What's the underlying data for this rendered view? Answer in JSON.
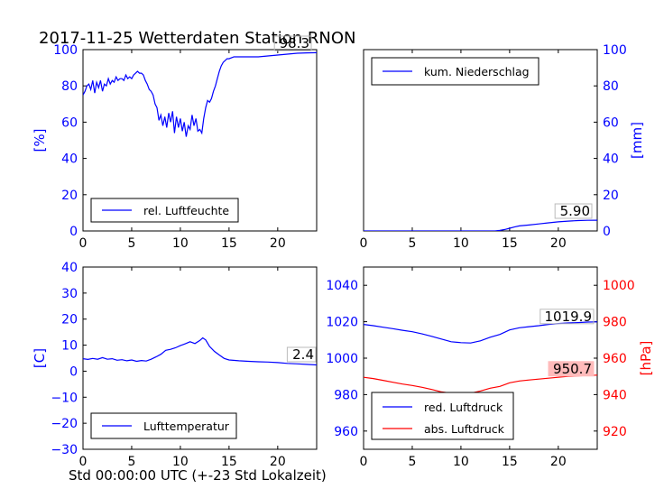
{
  "figure": {
    "title": "2017-11-25 Wetterdaten Station RNON",
    "xlabel": "Std 00:00:00 UTC (+-23 Std Lokalzeit)"
  },
  "chart_data": [
    {
      "id": "humidity",
      "type": "line",
      "ylabel": "[%]",
      "xlim": [
        0,
        24
      ],
      "ylim": [
        0,
        100
      ],
      "xticks": [
        0,
        5,
        10,
        15,
        20
      ],
      "yticks": [
        0,
        20,
        40,
        60,
        80,
        100
      ],
      "legend": "bottom-left",
      "series": [
        {
          "name": "rel. Luftfeuchte",
          "color": "#0000ff",
          "last_value_label": "98.3",
          "x": [
            0,
            0.2,
            0.4,
            0.6,
            0.8,
            1.0,
            1.2,
            1.4,
            1.6,
            1.8,
            2.0,
            2.2,
            2.4,
            2.6,
            2.8,
            3.0,
            3.2,
            3.4,
            3.6,
            3.8,
            4.0,
            4.2,
            4.4,
            4.6,
            4.8,
            5.0,
            5.2,
            5.4,
            5.6,
            5.8,
            6.0,
            6.2,
            6.4,
            6.6,
            6.8,
            7.0,
            7.2,
            7.4,
            7.6,
            7.8,
            8.0,
            8.2,
            8.4,
            8.6,
            8.8,
            9.0,
            9.2,
            9.4,
            9.6,
            9.8,
            10.0,
            10.2,
            10.4,
            10.6,
            10.8,
            11.0,
            11.2,
            11.4,
            11.6,
            11.8,
            12.0,
            12.2,
            12.4,
            12.6,
            12.8,
            13.0,
            13.2,
            13.4,
            13.6,
            13.8,
            14.0,
            14.2,
            14.4,
            14.6,
            14.8,
            15.0,
            15.5,
            16.0,
            17.0,
            18.0,
            19.0,
            20.0,
            21.0,
            22.0,
            23.0,
            24.0
          ],
          "y": [
            75,
            77,
            80,
            81,
            78,
            83,
            76,
            82,
            79,
            83,
            77,
            81,
            80,
            84,
            81,
            83,
            82,
            85,
            83,
            84,
            84,
            83,
            86,
            84,
            85,
            84,
            86,
            87,
            88,
            87,
            87,
            86,
            83,
            81,
            78,
            77,
            75,
            70,
            68,
            61,
            64,
            58,
            63,
            57,
            65,
            60,
            66,
            54,
            63,
            57,
            62,
            55,
            60,
            52,
            58,
            56,
            64,
            58,
            62,
            55,
            56,
            54,
            62,
            68,
            72,
            71,
            73,
            77,
            80,
            84,
            88,
            91,
            93,
            94,
            95,
            95,
            96,
            96,
            96,
            96,
            96.5,
            97,
            97.5,
            98,
            98.2,
            98.3
          ]
        }
      ]
    },
    {
      "id": "precipitation",
      "type": "line",
      "ylabel": "[mm]",
      "xlim": [
        0,
        24
      ],
      "ylim": [
        0,
        100
      ],
      "xticks": [
        0,
        5,
        10,
        15,
        20
      ],
      "yticks": [
        0,
        20,
        40,
        60,
        80,
        100
      ],
      "legend": "top-left",
      "series": [
        {
          "name": "kum. Niederschlag",
          "color": "#0000ff",
          "last_value_label": "5.90",
          "x": [
            0,
            13.5,
            14.0,
            14.5,
            15.0,
            15.5,
            16.0,
            17.0,
            18.0,
            19.0,
            20.0,
            21.0,
            22.0,
            23.0,
            24.0
          ],
          "y": [
            0,
            0,
            0.3,
            0.8,
            1.5,
            2.2,
            2.8,
            3.3,
            3.9,
            4.5,
            5.0,
            5.4,
            5.7,
            5.85,
            5.9
          ]
        }
      ]
    },
    {
      "id": "temperature",
      "type": "line",
      "ylabel": "[C]",
      "xlim": [
        0,
        24
      ],
      "ylim": [
        -30,
        40
      ],
      "xticks": [
        0,
        5,
        10,
        15,
        20
      ],
      "yticks": [
        -30,
        -20,
        -10,
        0,
        10,
        20,
        30,
        40
      ],
      "legend": "bottom-left",
      "series": [
        {
          "name": "Lufttemperatur",
          "color": "#0000ff",
          "last_value_label": "2.4",
          "x": [
            0,
            0.5,
            1.0,
            1.5,
            2.0,
            2.5,
            3.0,
            3.5,
            4.0,
            4.5,
            5.0,
            5.5,
            6.0,
            6.5,
            7.0,
            7.5,
            8.0,
            8.5,
            9.0,
            9.5,
            10.0,
            10.5,
            11.0,
            11.5,
            12.0,
            12.3,
            12.6,
            13.0,
            13.5,
            14.0,
            14.5,
            15.0,
            16.0,
            17.0,
            18.0,
            19.0,
            20.0,
            21.0,
            22.0,
            23.0,
            24.0
          ],
          "y": [
            4.8,
            4.5,
            4.9,
            4.6,
            5.2,
            4.6,
            4.8,
            4.2,
            4.4,
            4.0,
            4.3,
            3.8,
            4.1,
            3.9,
            4.6,
            5.5,
            6.5,
            8.0,
            8.4,
            9.0,
            9.8,
            10.5,
            11.3,
            10.6,
            11.8,
            12.8,
            12.0,
            9.5,
            7.6,
            6.2,
            4.9,
            4.3,
            4.0,
            3.8,
            3.6,
            3.5,
            3.3,
            3.0,
            2.8,
            2.6,
            2.4
          ]
        }
      ]
    },
    {
      "id": "pressure",
      "type": "line",
      "ylabel": "[hPa]",
      "xlim": [
        0,
        24
      ],
      "ylim_left": [
        950,
        1050
      ],
      "ylim_right": [
        910,
        1010
      ],
      "xticks": [
        0,
        5,
        10,
        15,
        20
      ],
      "yticks_left": [
        960,
        980,
        1000,
        1020,
        1040
      ],
      "yticks_right": [
        920,
        940,
        960,
        980,
        1000
      ],
      "legend": "bottom-left",
      "series": [
        {
          "name": "red. Luftdruck",
          "color": "#0000ff",
          "axis": "left",
          "last_value_label": "1019.9",
          "x": [
            0,
            1,
            2,
            3,
            4,
            5,
            6,
            7,
            8,
            9,
            10,
            11,
            12,
            13,
            14,
            15,
            16,
            17,
            18,
            19,
            20,
            21,
            22,
            23,
            24
          ],
          "y": [
            1018.5,
            1017.8,
            1017.0,
            1016.2,
            1015.3,
            1014.5,
            1013.3,
            1012.0,
            1010.5,
            1009.0,
            1008.5,
            1008.3,
            1009.5,
            1011.5,
            1013.0,
            1015.5,
            1016.7,
            1017.3,
            1017.8,
            1018.5,
            1019.0,
            1019.3,
            1019.5,
            1019.8,
            1019.9
          ]
        },
        {
          "name": "abs. Luftdruck",
          "color": "#ff0000",
          "axis": "right",
          "last_value_label": "950.7",
          "x": [
            0,
            1,
            2,
            3,
            4,
            5,
            6,
            7,
            8,
            9,
            10,
            11,
            12,
            13,
            14,
            15,
            16,
            17,
            18,
            19,
            20,
            21,
            22,
            23,
            24
          ],
          "y": [
            949.5,
            948.8,
            947.8,
            946.8,
            945.8,
            945.0,
            944.0,
            942.8,
            941.5,
            940.8,
            940.6,
            940.8,
            942.0,
            943.5,
            944.5,
            946.5,
            947.5,
            948.0,
            948.5,
            949.0,
            949.5,
            950.0,
            950.3,
            950.5,
            950.7
          ]
        }
      ]
    }
  ]
}
